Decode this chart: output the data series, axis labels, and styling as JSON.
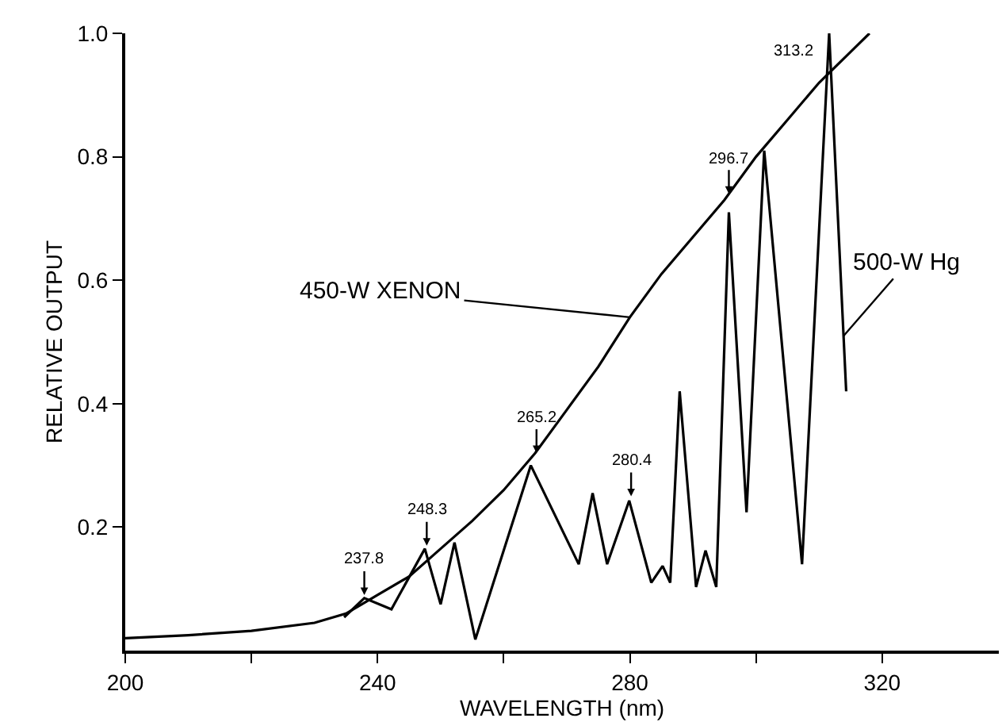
{
  "chart_data": {
    "type": "line",
    "xlabel": "WAVELENGTH (nm)",
    "ylabel": "RELATIVE OUTPUT",
    "xlim": [
      200,
      338.5
    ],
    "ylim": [
      0,
      1.0
    ],
    "xticks": [
      200,
      {
        "value": 220,
        "label": null
      },
      240,
      {
        "value": 260,
        "label": null
      },
      280,
      {
        "value": 300,
        "label": null
      },
      320
    ],
    "yticks": [
      0.2,
      0.4,
      0.6,
      0.8,
      {
        "value": 1.0,
        "label": "1.0"
      }
    ],
    "marker": "none",
    "line_style": "solid",
    "series": [
      {
        "color": "#000000",
        "x": [
          200,
          210,
          220,
          230,
          235,
          240,
          245,
          250,
          255,
          260,
          265,
          270,
          275,
          280,
          285,
          290,
          295,
          300,
          305,
          310,
          315,
          318
        ],
        "values": [
          0.02,
          0.025,
          0.032,
          0.045,
          0.06,
          0.09,
          0.12,
          0.165,
          0.21,
          0.26,
          0.32,
          0.39,
          0.46,
          0.54,
          0.61,
          0.67,
          0.73,
          0.8,
          0.86,
          0.92,
          0.97,
          1.0
        ]
      },
      {
        "color": "#000000",
        "x": [
          234.7,
          237.9,
          242.2,
          247.5,
          250,
          252.2,
          255.5,
          264.3,
          271.9,
          274.1,
          276.4,
          279.9,
          283.4,
          285.2,
          286.4,
          287.9,
          290.5,
          292,
          293.7,
          295.7,
          298.5,
          301.3,
          307.3,
          311.6,
          314.3
        ],
        "values": [
          0.054,
          0.085,
          0.067,
          0.165,
          0.075,
          0.175,
          0.018,
          0.3,
          0.14,
          0.255,
          0.14,
          0.243,
          0.11,
          0.137,
          0.11,
          0.42,
          0.103,
          0.162,
          0.103,
          0.71,
          0.224,
          0.81,
          0.14,
          1.0,
          0.42
        ]
      }
    ],
    "annotations": [
      {
        "text": "450-W XENON",
        "x": 280,
        "y": 0.54
      },
      {
        "text": "500-W Hg",
        "x": 313.9,
        "y": 0.51
      },
      {
        "text": "237.8",
        "x": 237.9,
        "y": 0.09
      },
      {
        "text": "248.3",
        "x": 247.8,
        "y": 0.17
      },
      {
        "text": "265.2",
        "x": 265.2,
        "y": 0.32
      },
      {
        "text": "280.4",
        "x": 280.2,
        "y": 0.25
      },
      {
        "text": "296.7",
        "x": 295.7,
        "y": 0.74
      },
      {
        "text": "313.2",
        "x": 311.6,
        "y": 0.97
      }
    ]
  }
}
